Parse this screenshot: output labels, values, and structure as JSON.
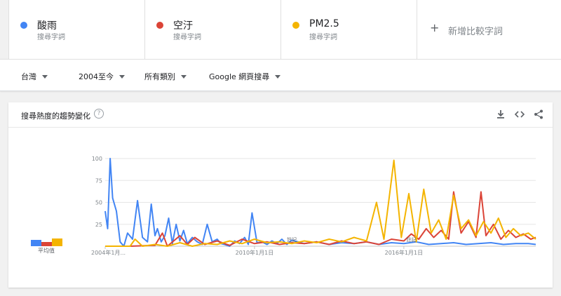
{
  "terms": [
    {
      "name": "酸雨",
      "sub": "搜尋字詞",
      "color": "#4285f4"
    },
    {
      "name": "空汙",
      "sub": "搜尋字詞",
      "color": "#db4437"
    },
    {
      "name": "PM2.5",
      "sub": "搜尋字詞",
      "color": "#f4b400"
    }
  ],
  "add_compare": "新增比較字詞",
  "filters": {
    "region": "台灣",
    "time": "2004至今",
    "category": "所有類別",
    "search_type": "Google 網頁搜尋"
  },
  "card": {
    "title": "搜尋熱度的趨勢變化",
    "help": "?",
    "average_label": "平均值",
    "average_values": [
      7,
      5,
      9
    ]
  },
  "chart_data": {
    "type": "line",
    "ylim": [
      0,
      100
    ],
    "yticks": [
      "100",
      "75",
      "50",
      "25"
    ],
    "xlabels": [
      "2004年1月...",
      "2010年1月1日",
      "2016年1月1日"
    ],
    "xlabel_years": [
      2004,
      2010,
      2016
    ],
    "xlim": [
      2004,
      2021.3
    ],
    "annotations": [
      {
        "text": "註記",
        "x": 2011.5
      },
      {
        "text": "註記",
        "x": 2016.3
      }
    ],
    "series": [
      {
        "name": "酸雨",
        "color": "#4285f4",
        "x": [
          2004.0,
          2004.1,
          2004.2,
          2004.3,
          2004.45,
          2004.6,
          2004.75,
          2004.9,
          2005.1,
          2005.3,
          2005.5,
          2005.7,
          2005.85,
          2006.0,
          2006.1,
          2006.25,
          2006.4,
          2006.55,
          2006.7,
          2006.85,
          2007.0,
          2007.15,
          2007.3,
          2007.5,
          2007.7,
          2007.9,
          2008.1,
          2008.3,
          2008.5,
          2008.65,
          2008.8,
          2009.0,
          2009.2,
          2009.4,
          2009.6,
          2009.75,
          2009.9,
          2010.1,
          2010.3,
          2010.5,
          2010.7,
          2010.9,
          2011.1,
          2011.3,
          2011.5,
          2012.0,
          2012.5,
          2013.0,
          2013.5,
          2014.0,
          2014.5,
          2015.0,
          2015.5,
          2016.0,
          2016.5,
          2017.0,
          2017.5,
          2018.0,
          2018.5,
          2019.0,
          2019.5,
          2020.0,
          2020.5,
          2021.0,
          2021.3
        ],
        "values": [
          40,
          20,
          100,
          55,
          40,
          5,
          0,
          15,
          8,
          52,
          10,
          5,
          48,
          12,
          20,
          5,
          12,
          32,
          3,
          25,
          6,
          18,
          3,
          10,
          5,
          2,
          25,
          5,
          8,
          3,
          2,
          0,
          6,
          3,
          10,
          2,
          38,
          4,
          5,
          2,
          6,
          3,
          8,
          2,
          7,
          3,
          5,
          2,
          4,
          3,
          5,
          2,
          4,
          3,
          5,
          2,
          3,
          4,
          2,
          3,
          4,
          2,
          3,
          3,
          2
        ]
      },
      {
        "name": "空汙",
        "color": "#db4437",
        "x": [
          2004.0,
          2005.0,
          2006.0,
          2006.3,
          2006.5,
          2007.0,
          2007.3,
          2007.6,
          2008.0,
          2008.5,
          2009.0,
          2009.5,
          2010.0,
          2010.5,
          2011.0,
          2011.5,
          2012.0,
          2012.5,
          2013.0,
          2013.5,
          2014.0,
          2014.5,
          2015.0,
          2015.5,
          2016.0,
          2016.3,
          2016.6,
          2016.9,
          2017.2,
          2017.5,
          2017.8,
          2018.0,
          2018.3,
          2018.6,
          2018.9,
          2019.1,
          2019.3,
          2019.6,
          2019.9,
          2020.2,
          2020.5,
          2020.8,
          2021.1,
          2021.3
        ],
        "values": [
          0,
          0,
          1,
          15,
          0,
          12,
          2,
          10,
          2,
          6,
          1,
          8,
          3,
          5,
          2,
          4,
          3,
          5,
          2,
          6,
          3,
          5,
          2,
          8,
          6,
          14,
          8,
          20,
          10,
          18,
          8,
          62,
          15,
          28,
          10,
          62,
          12,
          25,
          8,
          18,
          10,
          14,
          8,
          10
        ]
      },
      {
        "name": "PM2.5",
        "color": "#f4b400",
        "x": [
          2004.0,
          2005.0,
          2005.2,
          2005.5,
          2006.0,
          2006.5,
          2007.0,
          2007.5,
          2008.0,
          2008.5,
          2009.0,
          2009.5,
          2010.0,
          2010.5,
          2011.0,
          2011.5,
          2012.0,
          2012.5,
          2013.0,
          2013.5,
          2014.0,
          2014.5,
          2014.9,
          2015.2,
          2015.6,
          2015.9,
          2016.2,
          2016.5,
          2016.8,
          2017.1,
          2017.4,
          2017.7,
          2018.0,
          2018.3,
          2018.6,
          2018.9,
          2019.2,
          2019.5,
          2019.8,
          2020.1,
          2020.4,
          2020.7,
          2021.0,
          2021.3
        ],
        "values": [
          0,
          0,
          8,
          0,
          2,
          0,
          4,
          0,
          3,
          2,
          6,
          3,
          8,
          4,
          5,
          3,
          6,
          4,
          8,
          5,
          10,
          6,
          50,
          8,
          98,
          10,
          60,
          5,
          65,
          15,
          30,
          8,
          58,
          20,
          30,
          12,
          28,
          15,
          32,
          10,
          20,
          12,
          15,
          8
        ]
      }
    ]
  }
}
